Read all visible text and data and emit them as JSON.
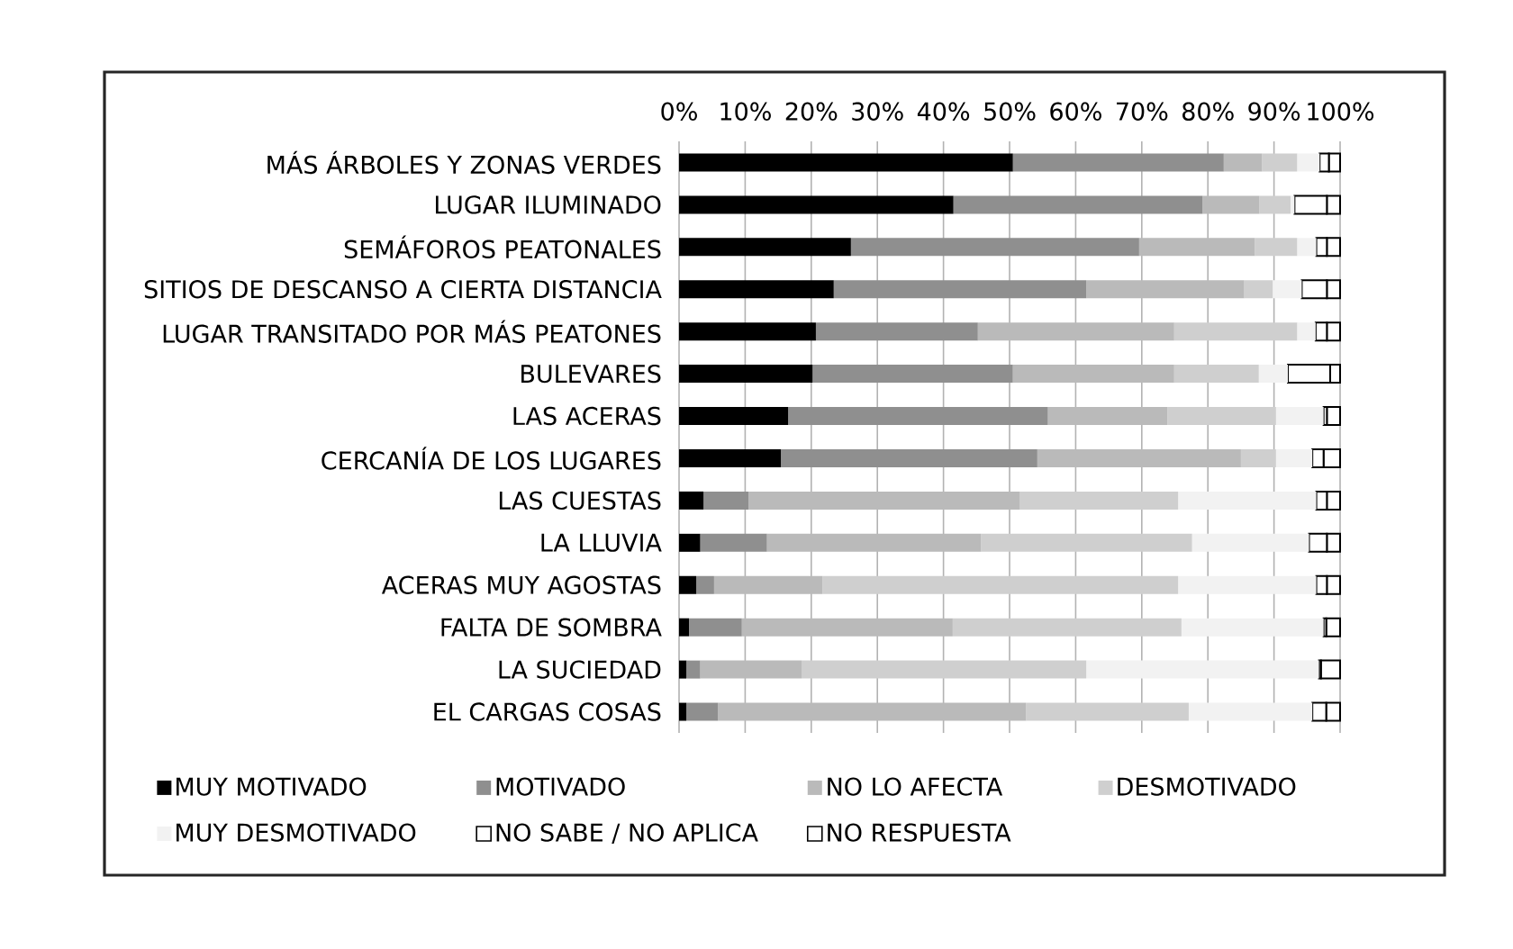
{
  "chart_data": {
    "type": "bar",
    "orientation": "horizontal",
    "stacked": true,
    "categories": [
      "MÁS ÁRBOLES Y ZONAS VERDES",
      "LUGAR ILUMINADO",
      "SEMÁFOROS PEATONALES",
      "SITIOS DE DESCANSO A CIERTA DISTANCIA",
      "LUGAR TRANSITADO POR MÁS PEATONES",
      "BULEVARES",
      "LAS ACERAS",
      "CERCANÍA DE LOS LUGARES",
      "LAS CUESTAS",
      "LA LLUVIA",
      "ACERAS MUY AGOSTAS",
      "FALTA DE SOMBRA",
      "LA SUCIEDAD",
      "EL CARGAS COSAS"
    ],
    "series": [
      {
        "name": "MUY MOTIVADO",
        "color": "#000000",
        "values": [
          50.5,
          41.5,
          26.0,
          23.4,
          20.7,
          20.2,
          16.5,
          15.4,
          3.7,
          3.2,
          2.6,
          1.5,
          1.1,
          1.1
        ]
      },
      {
        "name": "MOTIVADO",
        "color": "#8f8f8f",
        "values": [
          31.9,
          37.7,
          43.6,
          38.2,
          24.5,
          30.3,
          39.3,
          38.8,
          6.8,
          10.1,
          2.7,
          8.0,
          2.1,
          4.8
        ]
      },
      {
        "name": "NO LO AFECTA",
        "color": "#bababa",
        "values": [
          5.8,
          8.6,
          17.5,
          23.9,
          29.7,
          24.4,
          18.1,
          30.8,
          41.0,
          32.4,
          16.4,
          31.9,
          15.4,
          46.6
        ]
      },
      {
        "name": "DESMOTIVADO",
        "color": "#cfcfcf",
        "values": [
          5.3,
          4.7,
          6.4,
          4.3,
          18.6,
          12.8,
          16.4,
          5.3,
          24.0,
          31.9,
          53.8,
          34.6,
          43.0,
          24.6
        ]
      },
      {
        "name": "MUY DESMOTIVADO",
        "color": "#f2f2f2",
        "values": [
          3.4,
          0.6,
          2.9,
          4.4,
          2.8,
          4.4,
          7.2,
          5.5,
          20.9,
          17.7,
          20.9,
          21.5,
          35.2,
          18.7
        ]
      },
      {
        "name": "NO SABE / NO APLICA",
        "color": "#ffffff",
        "values": [
          1.4,
          4.9,
          1.6,
          3.8,
          1.7,
          6.4,
          0.5,
          1.7,
          1.6,
          2.7,
          1.6,
          0.4,
          0.3,
          2.1
        ]
      },
      {
        "name": "NO RESPUESTA",
        "color": "#ffffff",
        "values": [
          1.7,
          2.0,
          2.0,
          2.0,
          2.0,
          1.5,
          2.0,
          2.5,
          2.0,
          2.0,
          2.0,
          2.1,
          2.9,
          2.1
        ]
      }
    ],
    "xlim": [
      0,
      100
    ],
    "xticks": [
      {
        "value": 0,
        "label": "0%"
      },
      {
        "value": 10,
        "label": "10%"
      },
      {
        "value": 20,
        "label": "20%"
      },
      {
        "value": 30,
        "label": "30%"
      },
      {
        "value": 40,
        "label": "40%"
      },
      {
        "value": 50,
        "label": "50%"
      },
      {
        "value": 60,
        "label": "60%"
      },
      {
        "value": 70,
        "label": "70%"
      },
      {
        "value": 80,
        "label": "80%"
      },
      {
        "value": 90,
        "label": "90%"
      },
      {
        "value": 100,
        "label": "100%"
      }
    ],
    "grid": "x",
    "legend": "bottom"
  }
}
